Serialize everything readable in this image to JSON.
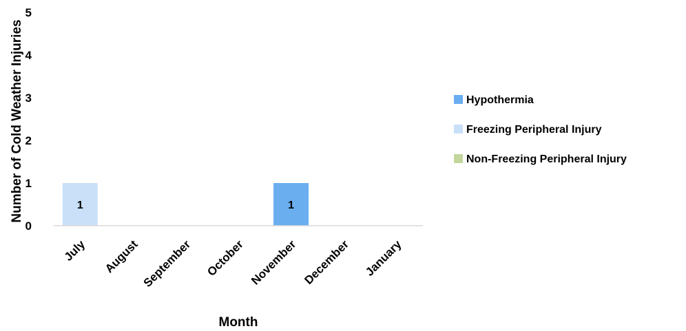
{
  "chart_data": {
    "type": "bar",
    "stacked": true,
    "xlabel": "Month",
    "ylabel": "Number of Cold Weather Injuries",
    "categories": [
      "July",
      "August",
      "September",
      "October",
      "November",
      "December",
      "January"
    ],
    "series": [
      {
        "name": "Hypothermia",
        "color": "#6aaef0",
        "values": [
          0,
          0,
          0,
          0,
          1,
          0,
          0
        ]
      },
      {
        "name": "Freezing Peripheral Injury",
        "color": "#c9e0f8",
        "values": [
          1,
          0,
          0,
          0,
          0,
          0,
          0
        ]
      },
      {
        "name": "Non-Freezing Peripheral Injury",
        "color": "#c3d69b",
        "values": [
          0,
          0,
          0,
          0,
          0,
          0,
          0
        ]
      }
    ],
    "data_labels": [
      {
        "category": "July",
        "text": "1"
      },
      {
        "category": "November",
        "text": "1"
      }
    ],
    "yticks": [
      "0",
      "1",
      "2",
      "3",
      "4",
      "5"
    ],
    "ylim": [
      0,
      5
    ],
    "grid": false,
    "legend_position": "right"
  }
}
